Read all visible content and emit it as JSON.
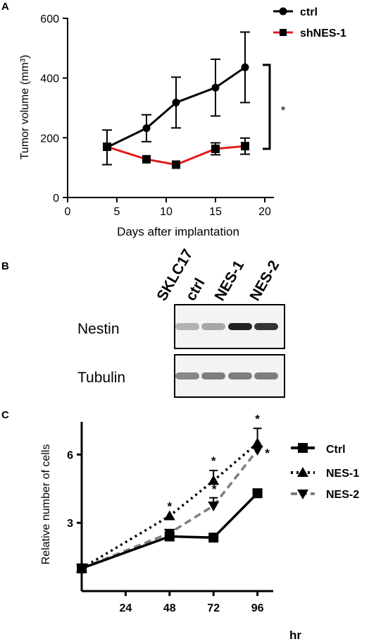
{
  "panel_a": {
    "letter": "A",
    "significance": "*"
  },
  "panel_b": {
    "letter": "B",
    "lanes": [
      "SKLC17",
      "ctrl",
      "NES-1",
      "NES-2"
    ],
    "blots": [
      {
        "label": "Nestin",
        "band_intensity": [
          0.25,
          0.3,
          0.95,
          0.85
        ]
      },
      {
        "label": "Tubulin",
        "band_intensity": [
          0.45,
          0.5,
          0.5,
          0.5
        ]
      }
    ]
  },
  "panel_c": {
    "letter": "C",
    "unit_label": "hr"
  },
  "chart_data": [
    {
      "type": "line",
      "title": "",
      "xlabel": "Days after implantation",
      "ylabel": "Tumor volume (mm³)",
      "xlim": [
        0,
        20
      ],
      "ylim": [
        0,
        600
      ],
      "xticks": [
        0,
        5,
        10,
        15,
        20
      ],
      "yticks": [
        0,
        200,
        400,
        600
      ],
      "grid": false,
      "legend_position": "top-right",
      "series": [
        {
          "name": "ctrl",
          "color": "#000000",
          "marker": "circle",
          "x": [
            4,
            8,
            11,
            15,
            18
          ],
          "y": [
            168,
            232,
            318,
            368,
            436
          ],
          "err": [
            58,
            45,
            85,
            95,
            118
          ]
        },
        {
          "name": "shNES-1",
          "color": "#e31a1c",
          "marker": "square",
          "x": [
            4,
            8,
            11,
            15,
            18
          ],
          "y": [
            170,
            128,
            110,
            163,
            172
          ],
          "err": [
            0,
            0,
            0,
            20,
            27
          ]
        }
      ]
    },
    {
      "type": "line",
      "title": "",
      "xlabel": "hr",
      "ylabel": "Relative number of cells",
      "xlim": [
        0,
        100
      ],
      "ylim": [
        0,
        7.5
      ],
      "xticks": [
        24,
        48,
        72,
        96
      ],
      "yticks": [
        3,
        6
      ],
      "grid": false,
      "legend_position": "right",
      "series": [
        {
          "name": "Ctrl",
          "color": "#000000",
          "marker": "square",
          "dash": "solid",
          "x": [
            0,
            48,
            72,
            96
          ],
          "y": [
            1,
            2.4,
            2.35,
            4.3
          ],
          "err": [
            0,
            0,
            0,
            0
          ],
          "stars": [
            false,
            false,
            false,
            false
          ]
        },
        {
          "name": "NES-1",
          "color": "#000000",
          "marker": "triangle-up",
          "dash": "dotted",
          "x": [
            0,
            48,
            72,
            96
          ],
          "y": [
            1,
            3.3,
            4.85,
            6.5
          ],
          "err": [
            0,
            0,
            0.45,
            0.65
          ],
          "stars": [
            false,
            true,
            true,
            true
          ]
        },
        {
          "name": "NES-2",
          "color": "#7f7f7f",
          "marker": "triangle-down",
          "dash": "dashed",
          "x": [
            0,
            48,
            72,
            96
          ],
          "y": [
            1,
            2.55,
            3.75,
            6.2
          ],
          "err": [
            0,
            0,
            0.35,
            0
          ],
          "stars": [
            false,
            false,
            true,
            true
          ]
        }
      ]
    }
  ]
}
